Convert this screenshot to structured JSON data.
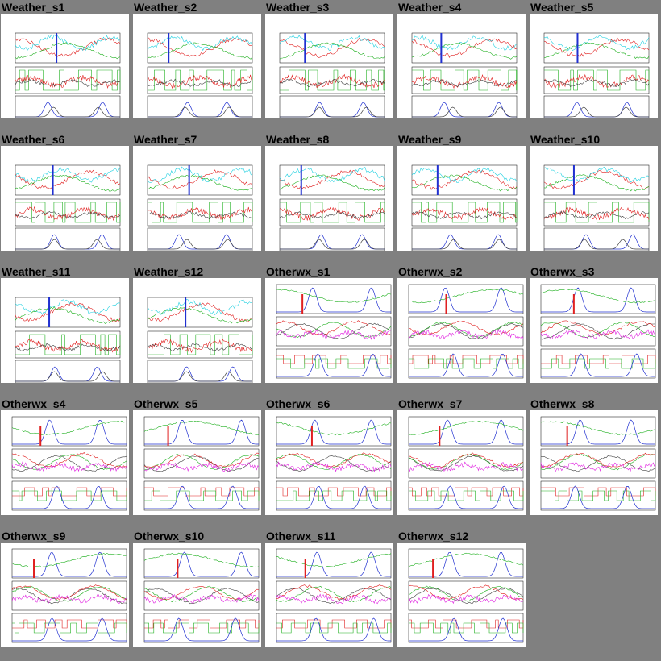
{
  "chart_data": {
    "type": "image-grid",
    "columns": 5,
    "items": [
      {
        "title": "Weather_s1",
        "kind": "weather"
      },
      {
        "title": "Weather_s2",
        "kind": "weather"
      },
      {
        "title": "Weather_s3",
        "kind": "weather"
      },
      {
        "title": "Weather_s4",
        "kind": "weather"
      },
      {
        "title": "Weather_s5",
        "kind": "weather"
      },
      {
        "title": "Weather_s6",
        "kind": "weather"
      },
      {
        "title": "Weather_s7",
        "kind": "weather"
      },
      {
        "title": "Weather_s8",
        "kind": "weather"
      },
      {
        "title": "Weather_s9",
        "kind": "weather"
      },
      {
        "title": "Weather_s10",
        "kind": "weather"
      },
      {
        "title": "Weather_s11",
        "kind": "weather"
      },
      {
        "title": "Weather_s12",
        "kind": "weather"
      },
      {
        "title": "Otherwx_s1",
        "kind": "otherwx"
      },
      {
        "title": "Otherwx_s2",
        "kind": "otherwx"
      },
      {
        "title": "Otherwx_s3",
        "kind": "otherwx"
      },
      {
        "title": "Otherwx_s4",
        "kind": "otherwx"
      },
      {
        "title": "Otherwx_s5",
        "kind": "otherwx"
      },
      {
        "title": "Otherwx_s6",
        "kind": "otherwx"
      },
      {
        "title": "Otherwx_s7",
        "kind": "otherwx"
      },
      {
        "title": "Otherwx_s8",
        "kind": "otherwx"
      },
      {
        "title": "Otherwx_s9",
        "kind": "otherwx"
      },
      {
        "title": "Otherwx_s10",
        "kind": "otherwx"
      },
      {
        "title": "Otherwx_s11",
        "kind": "otherwx"
      },
      {
        "title": "Otherwx_s12",
        "kind": "otherwx"
      }
    ]
  },
  "colors": {
    "background": "#808080",
    "panel": "#ffffff",
    "red": "#e02020",
    "green": "#20b020",
    "blue": "#2030d0",
    "cyan": "#20d0e0",
    "magenta": "#e020e0",
    "dark": "#404040"
  }
}
